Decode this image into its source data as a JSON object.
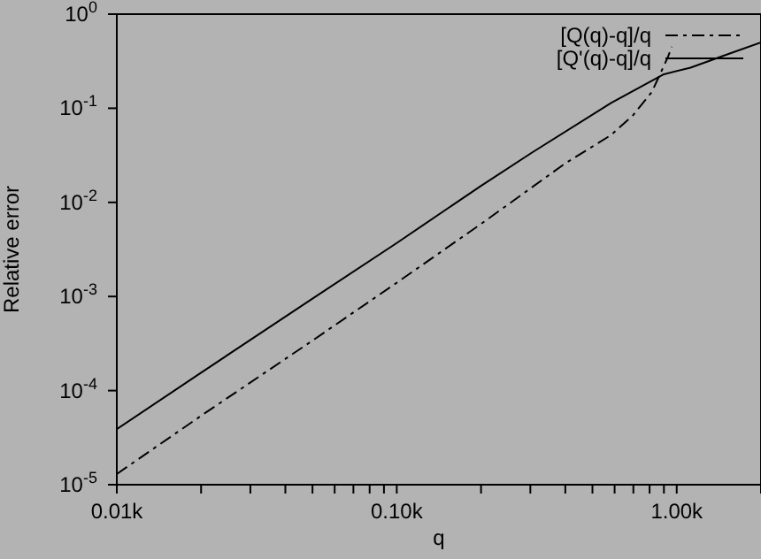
{
  "chart_data": {
    "type": "line",
    "xlabel": "q",
    "ylabel": "Relative error",
    "log": "xy",
    "xlim": [
      10,
      2000
    ],
    "xticks": [
      {
        "value": 10,
        "label": "0.01k"
      },
      {
        "value": 20,
        "label": null
      },
      {
        "value": 30,
        "label": null
      },
      {
        "value": 40,
        "label": null
      },
      {
        "value": 50,
        "label": null
      },
      {
        "value": 60,
        "label": null
      },
      {
        "value": 70,
        "label": null
      },
      {
        "value": 80,
        "label": null
      },
      {
        "value": 90,
        "label": null
      },
      {
        "value": 100,
        "label": "0.10k"
      },
      {
        "value": 200,
        "label": null
      },
      {
        "value": 300,
        "label": null
      },
      {
        "value": 400,
        "label": null
      },
      {
        "value": 500,
        "label": null
      },
      {
        "value": 600,
        "label": null
      },
      {
        "value": 700,
        "label": null
      },
      {
        "value": 800,
        "label": null
      },
      {
        "value": 900,
        "label": null
      },
      {
        "value": 1000,
        "label": "1.00k"
      },
      {
        "value": 2000,
        "label": null
      }
    ],
    "ylim": [
      1e-05,
      1
    ],
    "yticks": [
      {
        "value": 1e-05,
        "label": "10$^{-5}$"
      },
      {
        "value": 0.0001,
        "label": "10$^{-4}$"
      },
      {
        "value": 0.001,
        "label": "10$^{-3}$"
      },
      {
        "value": 0.01,
        "label": "10$^{-2}$"
      },
      {
        "value": 0.1,
        "label": "10$^{-1}$"
      },
      {
        "value": 1,
        "label": "10$^{0}$"
      }
    ],
    "legend": "top right",
    "grid": false,
    "series": [
      {
        "name": "[Q(q)-q]/q",
        "color": "#000000",
        "line_style": "dashed",
        "x": [
          10,
          20,
          50,
          100,
          200,
          400,
          583,
          700,
          816,
          930,
          960
        ],
        "values": [
          1.3e-05,
          5.4e-05,
          0.00034,
          0.0014,
          0.0059,
          0.026,
          0.052,
          0.085,
          0.15,
          0.35,
          0.45
        ]
      },
      {
        "name": "[Q'(q)-q]/q",
        "color": "#000000",
        "line_style": "solid",
        "x": [
          10,
          20,
          50,
          100,
          200,
          305,
          583,
          900,
          1120,
          1500,
          2000
        ],
        "values": [
          3.9e-05,
          0.000155,
          0.00095,
          0.0037,
          0.015,
          0.034,
          0.114,
          0.23,
          0.27,
          0.37,
          0.5
        ]
      }
    ]
  }
}
